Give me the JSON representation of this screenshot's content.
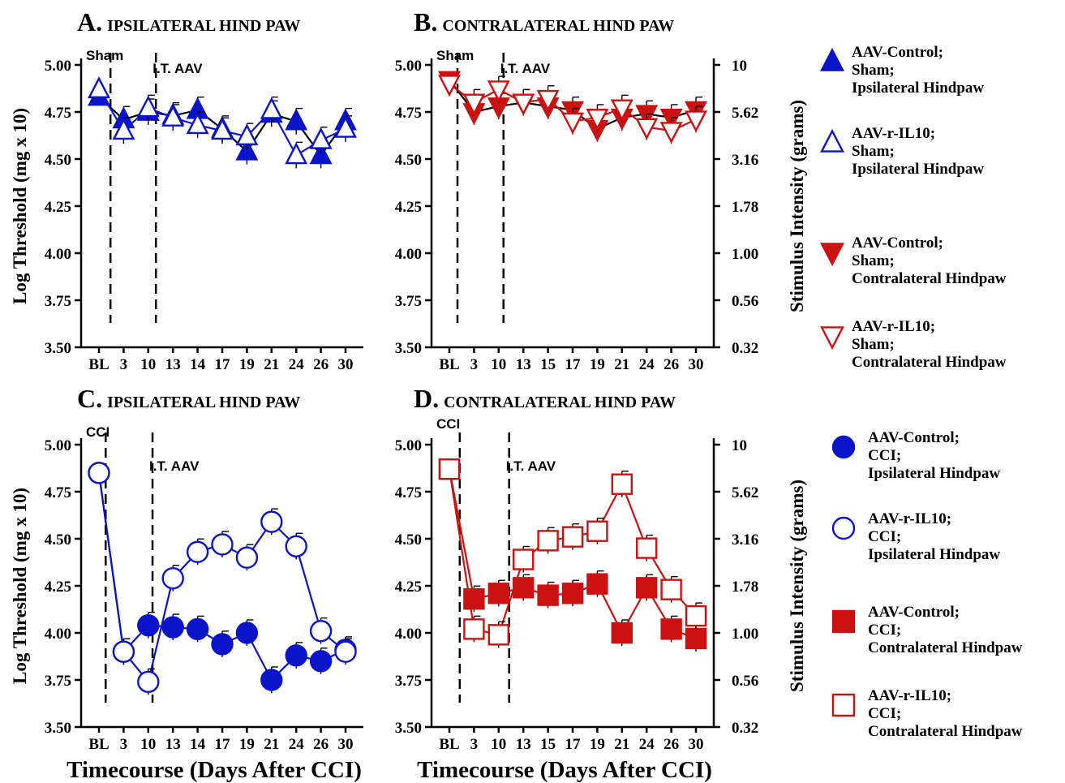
{
  "colors": {
    "blue": "#0a14c8",
    "red": "#cc1111",
    "black": "#000000"
  },
  "chart_data": [
    {
      "type": "line",
      "panel": "A",
      "panel_letter": "A.",
      "title": "IPSILATERAL HIND PAW",
      "marker": "triangle-up",
      "ylabel": "Log Threshold (mg x 10)",
      "y2label": "",
      "x_ticks": [
        "BL",
        "3",
        "10",
        "13",
        "14",
        "17",
        "19",
        "21",
        "24",
        "26",
        "30"
      ],
      "y_ticks": [
        "5.00",
        "4.75",
        "4.50",
        "4.25",
        "4.00",
        "3.75",
        "3.50"
      ],
      "y_ticks_right": [],
      "ylim": [
        3.5,
        5.0
      ],
      "xlabel": "",
      "annotations": [
        {
          "text": "Sham",
          "at_index": 1
        },
        {
          "text": "I.T. AAV",
          "at_index": 3
        }
      ],
      "series": [
        {
          "name": "AAV-Control; Sham; Ipsilateral Hindpaw",
          "fill": "solid",
          "color": "blue",
          "values": [
            4.83,
            4.71,
            4.75,
            4.73,
            4.76,
            4.66,
            4.54,
            4.74,
            4.7,
            4.52,
            4.7
          ]
        },
        {
          "name": "AAV-r-IL10; Sham; Ipsilateral Hindpaw",
          "fill": "open",
          "color": "blue",
          "values": [
            4.87,
            4.65,
            4.77,
            4.72,
            4.68,
            4.65,
            4.62,
            4.76,
            4.52,
            4.6,
            4.66
          ]
        }
      ]
    },
    {
      "type": "line",
      "panel": "B",
      "panel_letter": "B.",
      "title": "CONTRALATERAL HIND PAW",
      "marker": "triangle-down",
      "ylabel": "",
      "y2label": "Stimulus Intensity (grams)",
      "x_ticks": [
        "BL",
        "3",
        "10",
        "13",
        "15",
        "17",
        "19",
        "21",
        "24",
        "26",
        "30"
      ],
      "y_ticks": [
        "5.00",
        "4.75",
        "4.50",
        "4.25",
        "4.00",
        "3.75",
        "3.50"
      ],
      "y_ticks_right": [
        "10",
        "5.62",
        "3.16",
        "1.78",
        "1.00",
        "0.56",
        "0.32"
      ],
      "ylim": [
        3.5,
        5.0
      ],
      "xlabel": "",
      "annotations": [
        {
          "text": "Sham",
          "at_index": 1
        },
        {
          "text": "I.T. AAV",
          "at_index": 3
        }
      ],
      "series": [
        {
          "name": "AAV-Control; Sham; Contralateral Hindpaw",
          "fill": "solid",
          "color": "red",
          "values": [
            4.92,
            4.75,
            4.78,
            4.8,
            4.78,
            4.76,
            4.66,
            4.72,
            4.74,
            4.72,
            4.76
          ]
        },
        {
          "name": "AAV-r-IL10; Sham; Contralateral Hindpaw",
          "fill": "open",
          "color": "red",
          "values": [
            4.9,
            4.8,
            4.87,
            4.8,
            4.82,
            4.7,
            4.72,
            4.77,
            4.67,
            4.65,
            4.71
          ]
        }
      ]
    },
    {
      "type": "line",
      "panel": "C",
      "panel_letter": "C.",
      "title": "IPSILATERAL HIND PAW",
      "marker": "circle",
      "ylabel": "Log Threshold (mg x 10)",
      "y2label": "",
      "x_ticks": [
        "BL",
        "3",
        "10",
        "13",
        "14",
        "17",
        "19",
        "21",
        "24",
        "26",
        "30"
      ],
      "y_ticks": [
        "5.00",
        "4.75",
        "4.50",
        "4.25",
        "4.00",
        "3.75",
        "3.50"
      ],
      "y_ticks_right": [],
      "ylim": [
        3.5,
        5.0
      ],
      "xlabel": "Timecourse (Days After CCI)",
      "annotations": [
        {
          "text": "CCI",
          "at_index": 1
        },
        {
          "text": "I.T. AAV",
          "at_index": 3
        }
      ],
      "series": [
        {
          "name": "AAV-Control; CCI; Ipsilateral Hindpaw",
          "fill": "solid",
          "color": "blue",
          "values": [
            4.85,
            3.9,
            4.04,
            4.03,
            4.02,
            3.94,
            4.0,
            3.75,
            3.88,
            3.85,
            3.91
          ]
        },
        {
          "name": "AAV-r-IL10; CCI; Ipsilateral Hindpaw",
          "fill": "open",
          "color": "blue",
          "values": [
            4.85,
            3.9,
            3.74,
            4.29,
            4.43,
            4.47,
            4.4,
            4.59,
            4.46,
            4.01,
            3.9
          ]
        }
      ]
    },
    {
      "type": "line",
      "panel": "D",
      "panel_letter": "D.",
      "title": "CONTRALATERAL HIND PAW",
      "marker": "square",
      "ylabel": "",
      "y2label": "Stimulus Intensity (grams)",
      "x_ticks": [
        "BL",
        "3",
        "10",
        "13",
        "15",
        "17",
        "19",
        "21",
        "24",
        "26",
        "30"
      ],
      "y_ticks": [
        "5.00",
        "4.75",
        "4.50",
        "4.25",
        "4.00",
        "3.75",
        "3.50"
      ],
      "y_ticks_right": [
        "10",
        "5.62",
        "3.16",
        "1.78",
        "1.00",
        "0.56",
        "0.32"
      ],
      "ylim": [
        3.5,
        5.0
      ],
      "xlabel": "Timecourse (Days After CCI)",
      "annotations": [
        {
          "text": "CCI",
          "at_index": 1
        },
        {
          "text": "I.T. AAV",
          "at_index": 3
        }
      ],
      "series": [
        {
          "name": "AAV-Control; CCI; Contralateral Hindpaw",
          "fill": "solid",
          "color": "red",
          "values": [
            4.87,
            4.18,
            4.21,
            4.24,
            4.2,
            4.21,
            4.26,
            4.0,
            4.24,
            4.02,
            3.97
          ]
        },
        {
          "name": "AAV-r-IL10; CCI; Contralateral Hindpaw",
          "fill": "open",
          "color": "red",
          "values": [
            4.87,
            4.02,
            3.99,
            4.39,
            4.49,
            4.51,
            4.54,
            4.79,
            4.45,
            4.23,
            4.09
          ]
        }
      ]
    }
  ],
  "legend_top": [
    {
      "marker": "triangle-up",
      "fill": "solid",
      "color": "blue",
      "lines": [
        "AAV-Control;",
        "Sham;",
        "Ipsilateral Hindpaw"
      ]
    },
    {
      "marker": "triangle-up",
      "fill": "open",
      "color": "blue",
      "lines": [
        "AAV-r-IL10;",
        "Sham;",
        "Ipsilateral Hindpaw"
      ]
    },
    {
      "marker": "triangle-down",
      "fill": "solid",
      "color": "red",
      "lines": [
        "AAV-Control;",
        "Sham;",
        "Contralateral Hindpaw"
      ]
    },
    {
      "marker": "triangle-down",
      "fill": "open",
      "color": "red",
      "lines": [
        "AAV-r-IL10;",
        "Sham;",
        "Contralateral Hindpaw"
      ]
    }
  ],
  "legend_bottom": [
    {
      "marker": "circle",
      "fill": "solid",
      "color": "blue",
      "lines": [
        "AAV-Control;",
        "CCI;",
        "Ipsilateral Hindpaw"
      ]
    },
    {
      "marker": "circle",
      "fill": "open",
      "color": "blue",
      "lines": [
        "AAV-r-IL10;",
        "CCI;",
        "Ipsilateral Hindpaw"
      ]
    },
    {
      "marker": "square",
      "fill": "solid",
      "color": "red",
      "lines": [
        "AAV-Control;",
        "CCI;",
        "Contralateral Hindpaw"
      ]
    },
    {
      "marker": "square",
      "fill": "open",
      "color": "red",
      "lines": [
        "AAV-r-IL10;",
        "CCI;",
        "Contralateral Hindpaw"
      ]
    }
  ]
}
